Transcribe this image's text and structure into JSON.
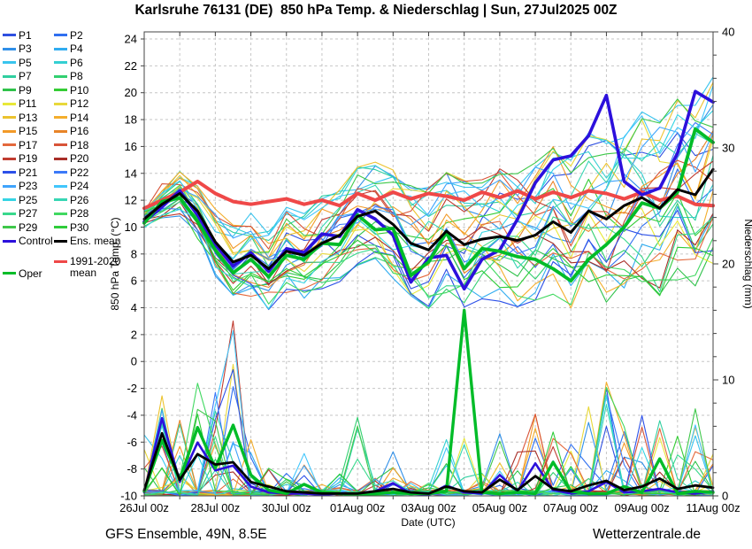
{
  "title": "Karlsruhe 76131 (DE)  850 hPa Temp. & Niederschlag | Sun, 27Jul2025 00Z",
  "footer": {
    "left": "GFS Ensemble, 49N, 8.5E",
    "right": "Wetterzentrale.de"
  },
  "legend": {
    "members": [
      {
        "label": "P1",
        "color": "#2e4fe0"
      },
      {
        "label": "P2",
        "color": "#2f6ff0"
      },
      {
        "label": "P3",
        "color": "#2f8fe8"
      },
      {
        "label": "P4",
        "color": "#30acf0"
      },
      {
        "label": "P5",
        "color": "#38c4ee"
      },
      {
        "label": "P6",
        "color": "#34cfd2"
      },
      {
        "label": "P7",
        "color": "#30cfa0"
      },
      {
        "label": "P8",
        "color": "#32d070"
      },
      {
        "label": "P9",
        "color": "#2fc24a"
      },
      {
        "label": "P10",
        "color": "#35cc35"
      },
      {
        "label": "P11",
        "color": "#e8e838"
      },
      {
        "label": "P12",
        "color": "#e8d83a"
      },
      {
        "label": "P13",
        "color": "#ecc32e"
      },
      {
        "label": "P14",
        "color": "#f4ae2c"
      },
      {
        "label": "P15",
        "color": "#f29a28"
      },
      {
        "label": "P16",
        "color": "#e88428"
      },
      {
        "label": "P17",
        "color": "#e4683c"
      },
      {
        "label": "P18",
        "color": "#d85438"
      },
      {
        "label": "P19",
        "color": "#c03c30"
      },
      {
        "label": "P20",
        "color": "#a82e28"
      },
      {
        "label": "P21",
        "color": "#2c50e8"
      },
      {
        "label": "P22",
        "color": "#3b79f8"
      },
      {
        "label": "P23",
        "color": "#3fa4fc"
      },
      {
        "label": "P24",
        "color": "#41c6fc"
      },
      {
        "label": "P25",
        "color": "#35d4e4"
      },
      {
        "label": "P26",
        "color": "#37d6b4"
      },
      {
        "label": "P27",
        "color": "#38d88c"
      },
      {
        "label": "P28",
        "color": "#40d860"
      },
      {
        "label": "P29",
        "color": "#3ec84a"
      },
      {
        "label": "P30",
        "color": "#2fcc3a"
      }
    ],
    "control": {
      "label": "Control",
      "color": "#2c10dc"
    },
    "ens_mean": {
      "label": "Ens. mean",
      "color": "#000000"
    },
    "climate": {
      "label": "1991-2020 mean",
      "color": "#ef4848"
    },
    "oper": {
      "label": "Oper",
      "color": "#00bc28"
    }
  },
  "chart_data": {
    "type": "line",
    "title": "Karlsruhe 76131 (DE)  850 hPa Temp. & Niederschlag | Sun, 27Jul2025 00Z",
    "xlabel": "Date (UTC)",
    "ylabel_left": "850 hPa Temp. (°C)",
    "ylabel_right": "Niederschlag (mm)",
    "x_tick_labels": [
      "26Jul 00z",
      "28Jul 00z",
      "30Jul 00z",
      "01Aug 00z",
      "03Aug 00z",
      "05Aug 00z",
      "07Aug 00z",
      "09Aug 00z",
      "11Aug 00z"
    ],
    "x_days_total": 16,
    "time_step_hours": 12,
    "ylim_left": [
      -10,
      24.5
    ],
    "ylim_right": [
      0,
      40
    ],
    "temp_ticks": [
      -10,
      -8,
      -6,
      -4,
      -2,
      0,
      2,
      4,
      6,
      8,
      10,
      12,
      14,
      16,
      18,
      20,
      22,
      24
    ],
    "precip_major_ticks": [
      0,
      10,
      20,
      30,
      40
    ],
    "precip_minor_step": 2,
    "grid": true,
    "legend_position": "left",
    "series": {
      "ens_mean_temp": [
        10.6,
        11.7,
        12.5,
        11.2,
        8.9,
        7.4,
        7.9,
        6.9,
        8.2,
        7.9,
        8.8,
        9.4,
        10.8,
        11.2,
        10.2,
        8.8,
        8.3,
        9.7,
        8.7,
        9.1,
        9.3,
        9.0,
        9.4,
        10.4,
        9.6,
        11.2,
        10.6,
        11.6,
        12.2,
        11.4,
        12.8,
        12.4,
        14.3
      ],
      "control_temp": [
        10.4,
        11.5,
        12.7,
        10.9,
        8.7,
        7.1,
        8.1,
        6.7,
        8.4,
        8.1,
        9.5,
        9.3,
        11.3,
        10.6,
        9.4,
        5.9,
        7.7,
        7.9,
        5.4,
        7.6,
        8.3,
        10.6,
        13.3,
        15.0,
        15.3,
        16.8,
        19.8,
        13.4,
        12.4,
        12.9,
        15.5,
        20.1,
        19.3
      ],
      "oper_temp": [
        10.3,
        11.9,
        12.2,
        10.4,
        8.3,
        6.6,
        7.6,
        6.3,
        7.9,
        7.6,
        8.8,
        8.7,
        10.9,
        9.8,
        9.9,
        6.4,
        7.4,
        9.6,
        6.9,
        8.4,
        8.2,
        7.8,
        7.6,
        6.9,
        6.0,
        7.6,
        8.7,
        10.0,
        11.8,
        11.4,
        12.6,
        17.3,
        16.3
      ],
      "climate_mean_temp": [
        11.4,
        12.0,
        12.6,
        13.4,
        12.5,
        11.9,
        11.7,
        11.9,
        12.1,
        11.7,
        12.0,
        11.6,
        12.5,
        12.0,
        12.6,
        12.1,
        12.5,
        12.3,
        12.0,
        12.6,
        12.2,
        12.7,
        12.1,
        12.6,
        12.2,
        12.7,
        12.5,
        12.1,
        12.6,
        12.0,
        12.3,
        11.7,
        11.6
      ],
      "ens_mean_precip": [
        0.5,
        5.4,
        1.4,
        3.6,
        2.7,
        2.9,
        1.2,
        0.8,
        0.4,
        0.3,
        0.2,
        0.2,
        0.2,
        0.4,
        0.6,
        0.3,
        0.2,
        0.8,
        0.4,
        0.3,
        1.4,
        0.5,
        1.7,
        0.6,
        0.4,
        0.9,
        1.3,
        0.5,
        0.8,
        1.5,
        0.6,
        0.9,
        0.7
      ],
      "control_precip": [
        0.3,
        6.7,
        1.2,
        4.6,
        2.2,
        2.6,
        0.8,
        0.3,
        0.2,
        0.2,
        0.1,
        0.2,
        0.2,
        0.4,
        1.1,
        0.2,
        0.1,
        0.9,
        0.3,
        0.2,
        1.8,
        0.4,
        2.8,
        0.5,
        0.2,
        0.4,
        1.2,
        0.3,
        0.4,
        0.6,
        0.3,
        0.2,
        0.4
      ],
      "oper_precip": [
        0.4,
        4.8,
        1.4,
        5.9,
        2.4,
        6.1,
        1.8,
        0.5,
        0.2,
        1.0,
        0.3,
        0.2,
        0.1,
        0.2,
        0.3,
        0.2,
        0.2,
        0.4,
        16.0,
        0.3,
        0.2,
        0.3,
        0.2,
        2.9,
        0.4,
        0.2,
        0.2,
        0.8,
        0.3,
        3.2,
        0.2,
        0.4,
        0.3
      ]
    },
    "members": {
      "count": 30,
      "seed": 11,
      "temp_spread_profile": [
        0.5,
        0.7,
        0.8,
        1.0,
        1.2,
        1.4,
        1.5,
        1.5,
        1.6,
        1.6,
        1.7,
        1.7,
        1.8,
        1.9,
        2.0,
        2.2,
        2.3,
        2.3,
        2.4,
        2.4,
        2.5,
        2.6,
        2.7,
        2.8,
        2.9,
        3.0,
        3.1,
        3.2,
        3.2,
        3.3,
        3.4,
        3.5,
        3.6
      ],
      "precip_max_profile": [
        6,
        10,
        7,
        12,
        9,
        18,
        6,
        3,
        2,
        4,
        2,
        2,
        7,
        3,
        4,
        2,
        2,
        5,
        6,
        3,
        6,
        4,
        8,
        6,
        5,
        8,
        10,
        6,
        7,
        9,
        6,
        8,
        4
      ]
    }
  }
}
